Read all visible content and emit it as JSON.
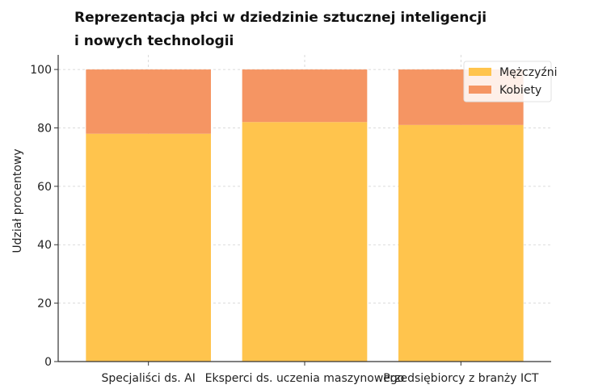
{
  "chart_data": {
    "type": "bar",
    "stacked": true,
    "title_lines": [
      "Reprezentacja płci w dziedzinie sztucznej inteligencji",
      "i nowych technologii"
    ],
    "xlabel": "",
    "ylabel": "Udział procentowy",
    "ylim": [
      0,
      105
    ],
    "yticks": [
      0,
      20,
      40,
      60,
      80,
      100
    ],
    "categories": [
      "Specjaliści ds. AI",
      "Eksperci ds. uczenia maszynowego",
      "Przedsiębiorcy z branży ICT"
    ],
    "series": [
      {
        "name": "Mężczyźni",
        "values": [
          78,
          82,
          81
        ],
        "color": "#ffc44d"
      },
      {
        "name": "Kobiety",
        "values": [
          22,
          18,
          19
        ],
        "color": "#f59563"
      }
    ],
    "grid": true,
    "legend_position": "top-right"
  }
}
